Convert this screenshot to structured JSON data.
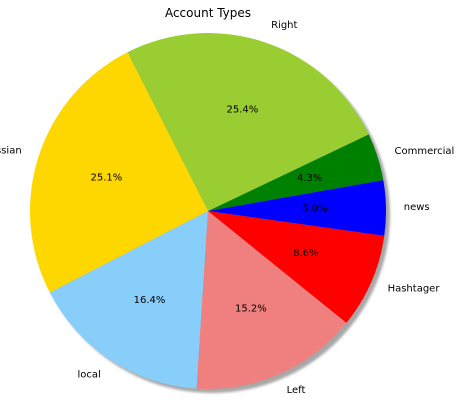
{
  "chart_data": {
    "type": "pie",
    "title": "Account Types",
    "categories": [
      "Commercial",
      "Right",
      "Russian",
      "local",
      "Left",
      "Hashtager",
      "news"
    ],
    "values": [
      4.3,
      25.4,
      25.1,
      16.4,
      15.2,
      8.6,
      5.0
    ],
    "percent_labels": [
      "4.3%",
      "25.4%",
      "25.1%",
      "16.4%",
      "15.2%",
      "8.6%",
      "5.0%"
    ],
    "colors": [
      "#008000",
      "#9ACD32",
      "#FFD700",
      "#87CEFA",
      "#F08080",
      "#FF0000",
      "#0000FF"
    ],
    "shadow": true
  }
}
